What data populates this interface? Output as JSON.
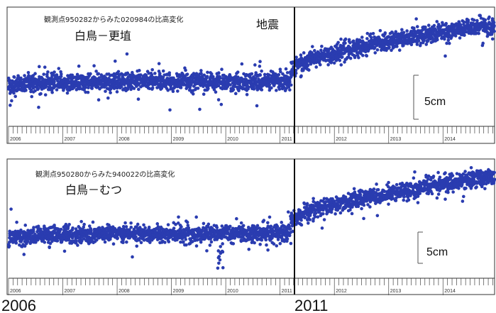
{
  "colors": {
    "points": "#2a3cb0",
    "frame": "#333333",
    "event_line": "#111111",
    "background": "#ffffff"
  },
  "chart_data": [
    {
      "type": "scatter",
      "title": "観測点950282からみた020984の比高変化",
      "subtitle": "白鳥－更埴",
      "event_label": "地震",
      "scale_label": "5cm",
      "xlim": [
        2006.0,
        2014.95
      ],
      "ylim": [
        -9,
        16
      ],
      "x_tick_labels": [
        "2006",
        "2007",
        "2008",
        "2009",
        "2010",
        "2011",
        "2012",
        "2013",
        "2014"
      ],
      "event_x": 2011.19,
      "grid": false,
      "legend": "none",
      "series": [
        {
          "x": [
            2006.0,
            2006.5,
            2007.0,
            2007.5,
            2008.0,
            2008.5,
            2009.0,
            2009.5,
            2010.0,
            2010.5,
            2011.19,
            2011.2,
            2011.5,
            2012.0,
            2012.5,
            2013.0,
            2013.5,
            2014.0,
            2014.5,
            2014.95
          ],
          "values": [
            -0.5,
            0.0,
            0.3,
            0.3,
            0.5,
            0.6,
            0.4,
            0.5,
            0.4,
            0.4,
            0.5,
            3.0,
            5.0,
            6.5,
            8.0,
            9.0,
            10.0,
            11.0,
            12.0,
            12.5
          ]
        }
      ]
    },
    {
      "type": "scatter",
      "title": "観測点950280からみた940022の比高変化",
      "subtitle": "白鳥－むつ",
      "scale_label": "5cm",
      "xlim": [
        2006.0,
        2014.95
      ],
      "ylim": [
        -9,
        16
      ],
      "x_tick_labels": [
        "2006",
        "2007",
        "2008",
        "2009",
        "2010",
        "2011",
        "2012",
        "2013",
        "2014"
      ],
      "event_x": 2011.19,
      "grid": false,
      "legend": "none",
      "series": [
        {
          "x": [
            2006.0,
            2006.5,
            2007.0,
            2007.5,
            2008.0,
            2008.5,
            2009.0,
            2009.5,
            2010.0,
            2010.5,
            2011.19,
            2011.2,
            2011.5,
            2012.0,
            2012.5,
            2013.0,
            2013.5,
            2014.0,
            2014.5,
            2014.95
          ],
          "values": [
            -0.5,
            0.0,
            0.2,
            0.3,
            0.5,
            0.5,
            0.3,
            0.3,
            0.5,
            0.4,
            0.6,
            3.5,
            5.0,
            6.5,
            8.0,
            9.0,
            10.0,
            11.0,
            12.0,
            12.5
          ]
        }
      ]
    }
  ],
  "bottom_labels": {
    "left": "2006",
    "right": "2011"
  }
}
